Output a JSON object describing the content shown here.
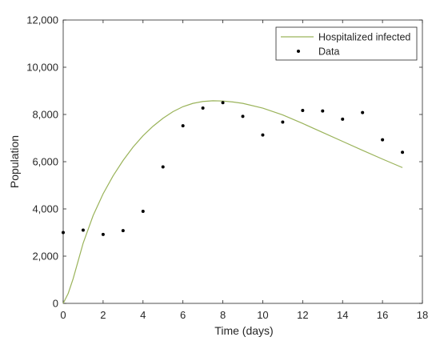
{
  "chart_data": {
    "type": "scatter",
    "title": "",
    "xlabel": "Time (days)",
    "ylabel": "Population",
    "xlim": [
      0,
      18
    ],
    "ylim": [
      0,
      12000
    ],
    "xticks": [
      0,
      2,
      4,
      6,
      8,
      10,
      12,
      14,
      16,
      18
    ],
    "yticks": [
      0,
      2000,
      4000,
      6000,
      8000,
      10000,
      12000
    ],
    "ytick_labels": [
      "0",
      "2,000",
      "4,000",
      "6,000",
      "8,000",
      "10,000",
      "12,000"
    ],
    "grid": false,
    "legend_position": "top-right",
    "series": [
      {
        "name": "Hospitalized infected",
        "kind": "line",
        "color": "#9ab35a",
        "x": [
          0,
          0.25,
          0.5,
          0.75,
          1,
          1.5,
          2,
          2.5,
          3,
          3.5,
          4,
          4.5,
          5,
          5.5,
          6,
          6.5,
          7,
          7.5,
          8,
          8.5,
          9,
          10,
          11,
          12,
          13,
          14,
          15,
          16,
          17
        ],
        "y": [
          0,
          420,
          1050,
          1800,
          2550,
          3720,
          4640,
          5400,
          6050,
          6620,
          7100,
          7500,
          7840,
          8120,
          8330,
          8470,
          8550,
          8580,
          8570,
          8530,
          8470,
          8270,
          7980,
          7620,
          7240,
          6860,
          6480,
          6110,
          5750
        ]
      },
      {
        "name": "Data",
        "kind": "scatter",
        "color": "#000000",
        "x": [
          0,
          1,
          2,
          3,
          4,
          5,
          6,
          7,
          8,
          9,
          10,
          11,
          12,
          13,
          14,
          15,
          16,
          17
        ],
        "y": [
          3000,
          3100,
          2920,
          3080,
          3900,
          5780,
          7520,
          8270,
          8500,
          7920,
          7130,
          7680,
          8170,
          8150,
          7800,
          8080,
          6930,
          6400
        ]
      }
    ]
  }
}
